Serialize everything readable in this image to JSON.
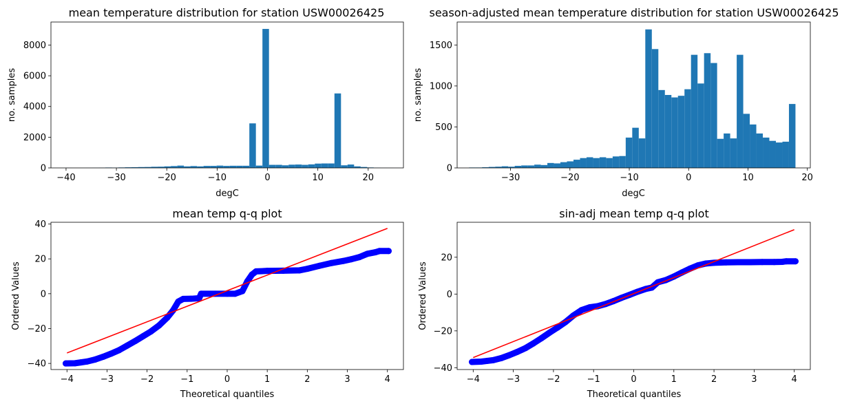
{
  "chart_data": [
    {
      "type": "bar",
      "title": "mean temperature distribution for station USW00026425",
      "xlabel": "degC",
      "ylabel": "no. samples",
      "xlim": [
        -43,
        27
      ],
      "ylim": [
        0,
        9500
      ],
      "xticks": [
        -40,
        -30,
        -20,
        -10,
        0,
        10,
        20
      ],
      "yticks": [
        0,
        2000,
        4000,
        6000,
        8000
      ],
      "color": "#1f77b4",
      "bins": [
        {
          "x0": -40.0,
          "x1": -38.7,
          "value": 5
        },
        {
          "x0": -38.7,
          "x1": -37.4,
          "value": 2
        },
        {
          "x0": -37.4,
          "x1": -36.1,
          "value": 3
        },
        {
          "x0": -36.1,
          "x1": -34.8,
          "value": 4
        },
        {
          "x0": -34.8,
          "x1": -33.5,
          "value": 8
        },
        {
          "x0": -33.5,
          "x1": -32.2,
          "value": 12
        },
        {
          "x0": -32.2,
          "x1": -30.9,
          "value": 25
        },
        {
          "x0": -30.9,
          "x1": -29.6,
          "value": 18
        },
        {
          "x0": -29.6,
          "x1": -28.3,
          "value": 30
        },
        {
          "x0": -28.3,
          "x1": -27.0,
          "value": 40
        },
        {
          "x0": -27.0,
          "x1": -25.7,
          "value": 45
        },
        {
          "x0": -25.7,
          "x1": -24.4,
          "value": 55
        },
        {
          "x0": -24.4,
          "x1": -23.1,
          "value": 60
        },
        {
          "x0": -23.1,
          "x1": -21.8,
          "value": 75
        },
        {
          "x0": -21.8,
          "x1": -20.5,
          "value": 80
        },
        {
          "x0": -20.5,
          "x1": -19.2,
          "value": 100
        },
        {
          "x0": -19.2,
          "x1": -17.9,
          "value": 120
        },
        {
          "x0": -17.9,
          "x1": -16.6,
          "value": 150
        },
        {
          "x0": -16.6,
          "x1": -15.3,
          "value": 100
        },
        {
          "x0": -15.3,
          "x1": -14.0,
          "value": 120
        },
        {
          "x0": -14.0,
          "x1": -12.7,
          "value": 100
        },
        {
          "x0": -12.7,
          "x1": -11.4,
          "value": 130
        },
        {
          "x0": -11.4,
          "x1": -10.1,
          "value": 130
        },
        {
          "x0": -10.1,
          "x1": -8.8,
          "value": 150
        },
        {
          "x0": -8.8,
          "x1": -7.5,
          "value": 130
        },
        {
          "x0": -7.5,
          "x1": -6.2,
          "value": 140
        },
        {
          "x0": -6.2,
          "x1": -4.9,
          "value": 140
        },
        {
          "x0": -4.9,
          "x1": -3.6,
          "value": 140
        },
        {
          "x0": -3.6,
          "x1": -2.3,
          "value": 2900
        },
        {
          "x0": -2.3,
          "x1": -1.0,
          "value": 150
        },
        {
          "x0": -1.0,
          "x1": 0.3,
          "value": 9050
        },
        {
          "x0": 0.3,
          "x1": 1.6,
          "value": 200
        },
        {
          "x0": 1.6,
          "x1": 2.9,
          "value": 200
        },
        {
          "x0": 2.9,
          "x1": 4.2,
          "value": 170
        },
        {
          "x0": 4.2,
          "x1": 5.5,
          "value": 210
        },
        {
          "x0": 5.5,
          "x1": 6.8,
          "value": 220
        },
        {
          "x0": 6.8,
          "x1": 8.1,
          "value": 200
        },
        {
          "x0": 8.1,
          "x1": 9.4,
          "value": 230
        },
        {
          "x0": 9.4,
          "x1": 10.7,
          "value": 280
        },
        {
          "x0": 10.7,
          "x1": 12.0,
          "value": 290
        },
        {
          "x0": 12.0,
          "x1": 13.3,
          "value": 290
        },
        {
          "x0": 13.3,
          "x1": 14.6,
          "value": 4850
        },
        {
          "x0": 14.6,
          "x1": 15.9,
          "value": 170
        },
        {
          "x0": 15.9,
          "x1": 17.2,
          "value": 220
        },
        {
          "x0": 17.2,
          "x1": 18.5,
          "value": 100
        },
        {
          "x0": 18.5,
          "x1": 19.8,
          "value": 60
        },
        {
          "x0": 19.8,
          "x1": 21.1,
          "value": 30
        },
        {
          "x0": 21.1,
          "x1": 22.4,
          "value": 12
        },
        {
          "x0": 22.4,
          "x1": 23.7,
          "value": 5
        },
        {
          "x0": 23.7,
          "x1": 25.0,
          "value": 3
        }
      ]
    },
    {
      "type": "bar",
      "title": "season-adjusted mean temperature distribution for station USW00026425",
      "xlabel": "degC",
      "ylabel": "no. samples",
      "xlim": [
        -39,
        20.5
      ],
      "ylim": [
        0,
        1780
      ],
      "xticks": [
        -30,
        -20,
        -10,
        0,
        10,
        20
      ],
      "yticks": [
        0,
        500,
        1000,
        1500
      ],
      "color": "#1f77b4",
      "bins": [
        {
          "x0": -37.0,
          "x1": -35.9,
          "value": 5
        },
        {
          "x0": -35.9,
          "x1": -34.8,
          "value": 5
        },
        {
          "x0": -34.8,
          "x1": -33.7,
          "value": 8
        },
        {
          "x0": -33.7,
          "x1": -32.6,
          "value": 12
        },
        {
          "x0": -32.6,
          "x1": -31.5,
          "value": 15
        },
        {
          "x0": -31.5,
          "x1": -30.4,
          "value": 20
        },
        {
          "x0": -30.4,
          "x1": -29.3,
          "value": 15
        },
        {
          "x0": -29.3,
          "x1": -28.2,
          "value": 25
        },
        {
          "x0": -28.2,
          "x1": -27.1,
          "value": 30
        },
        {
          "x0": -27.1,
          "x1": -26.0,
          "value": 30
        },
        {
          "x0": -26.0,
          "x1": -24.9,
          "value": 40
        },
        {
          "x0": -24.9,
          "x1": -23.8,
          "value": 35
        },
        {
          "x0": -23.8,
          "x1": -22.7,
          "value": 60
        },
        {
          "x0": -22.7,
          "x1": -21.6,
          "value": 55
        },
        {
          "x0": -21.6,
          "x1": -20.5,
          "value": 70
        },
        {
          "x0": -20.5,
          "x1": -19.4,
          "value": 80
        },
        {
          "x0": -19.4,
          "x1": -18.3,
          "value": 100
        },
        {
          "x0": -18.3,
          "x1": -17.2,
          "value": 120
        },
        {
          "x0": -17.2,
          "x1": -16.1,
          "value": 130
        },
        {
          "x0": -16.1,
          "x1": -15.0,
          "value": 120
        },
        {
          "x0": -15.0,
          "x1": -13.9,
          "value": 130
        },
        {
          "x0": -13.9,
          "x1": -12.8,
          "value": 120
        },
        {
          "x0": -12.8,
          "x1": -11.7,
          "value": 140
        },
        {
          "x0": -11.7,
          "x1": -10.6,
          "value": 145
        },
        {
          "x0": -10.6,
          "x1": -9.5,
          "value": 370
        },
        {
          "x0": -9.5,
          "x1": -8.4,
          "value": 490
        },
        {
          "x0": -8.4,
          "x1": -7.3,
          "value": 360
        },
        {
          "x0": -7.3,
          "x1": -6.2,
          "value": 1690
        },
        {
          "x0": -6.2,
          "x1": -5.1,
          "value": 1450
        },
        {
          "x0": -5.1,
          "x1": -4.0,
          "value": 950
        },
        {
          "x0": -4.0,
          "x1": -2.9,
          "value": 890
        },
        {
          "x0": -2.9,
          "x1": -1.8,
          "value": 860
        },
        {
          "x0": -1.8,
          "x1": -0.7,
          "value": 880
        },
        {
          "x0": -0.7,
          "x1": 0.4,
          "value": 960
        },
        {
          "x0": 0.4,
          "x1": 1.5,
          "value": 1380
        },
        {
          "x0": 1.5,
          "x1": 2.6,
          "value": 1030
        },
        {
          "x0": 2.6,
          "x1": 3.7,
          "value": 1400
        },
        {
          "x0": 3.7,
          "x1": 4.8,
          "value": 1280
        },
        {
          "x0": 4.8,
          "x1": 5.9,
          "value": 355
        },
        {
          "x0": 5.9,
          "x1": 7.0,
          "value": 420
        },
        {
          "x0": 7.0,
          "x1": 8.1,
          "value": 360
        },
        {
          "x0": 8.1,
          "x1": 9.2,
          "value": 1380
        },
        {
          "x0": 9.2,
          "x1": 10.3,
          "value": 660
        },
        {
          "x0": 10.3,
          "x1": 11.4,
          "value": 530
        },
        {
          "x0": 11.4,
          "x1": 12.5,
          "value": 420
        },
        {
          "x0": 12.5,
          "x1": 13.6,
          "value": 370
        },
        {
          "x0": 13.6,
          "x1": 14.7,
          "value": 330
        },
        {
          "x0": 14.7,
          "x1": 15.8,
          "value": 310
        },
        {
          "x0": 15.8,
          "x1": 16.9,
          "value": 320
        },
        {
          "x0": 16.9,
          "x1": 18.0,
          "value": 780
        }
      ]
    },
    {
      "type": "scatter",
      "title": "mean temp q-q plot",
      "xlabel": "Theoretical quantiles",
      "ylabel": "Ordered Values",
      "xlim": [
        -4.4,
        4.4
      ],
      "ylim": [
        -43.5,
        41
      ],
      "xticks": [
        -4,
        -3,
        -2,
        -1,
        0,
        1,
        2,
        3,
        4
      ],
      "yticks": [
        -40,
        -20,
        0,
        20,
        40
      ],
      "marker_color": "#0000ff",
      "line_color": "#ff0000",
      "fit_line": {
        "x": [
          -4.0,
          4.0
        ],
        "y": [
          -34.0,
          37.5
        ]
      },
      "points": [
        {
          "x": -4.03,
          "y": -40.0
        },
        {
          "x": -3.8,
          "y": -39.9
        },
        {
          "x": -3.65,
          "y": -39.4
        },
        {
          "x": -3.5,
          "y": -38.9
        },
        {
          "x": -3.3,
          "y": -37.8
        },
        {
          "x": -3.1,
          "y": -36.2
        },
        {
          "x": -2.9,
          "y": -34.4
        },
        {
          "x": -2.7,
          "y": -32.4
        },
        {
          "x": -2.5,
          "y": -29.8
        },
        {
          "x": -2.3,
          "y": -27.2
        },
        {
          "x": -2.1,
          "y": -24.4
        },
        {
          "x": -1.9,
          "y": -21.6
        },
        {
          "x": -1.7,
          "y": -18.2
        },
        {
          "x": -1.5,
          "y": -13.8
        },
        {
          "x": -1.35,
          "y": -9.5
        },
        {
          "x": -1.22,
          "y": -4.5
        },
        {
          "x": -1.1,
          "y": -3.0
        },
        {
          "x": -0.9,
          "y": -2.9
        },
        {
          "x": -0.7,
          "y": -2.6
        },
        {
          "x": -0.65,
          "y": 0.0
        },
        {
          "x": -0.3,
          "y": 0.0
        },
        {
          "x": 0.0,
          "y": 0.0
        },
        {
          "x": 0.2,
          "y": 0.0
        },
        {
          "x": 0.38,
          "y": 1.5
        },
        {
          "x": 0.5,
          "y": 7.0
        },
        {
          "x": 0.62,
          "y": 11.0
        },
        {
          "x": 0.72,
          "y": 12.8
        },
        {
          "x": 1.0,
          "y": 13.1
        },
        {
          "x": 1.4,
          "y": 13.2
        },
        {
          "x": 1.8,
          "y": 13.4
        },
        {
          "x": 2.0,
          "y": 14.3
        },
        {
          "x": 2.3,
          "y": 16.0
        },
        {
          "x": 2.6,
          "y": 17.6
        },
        {
          "x": 2.9,
          "y": 18.8
        },
        {
          "x": 3.1,
          "y": 19.8
        },
        {
          "x": 3.3,
          "y": 21.0
        },
        {
          "x": 3.5,
          "y": 22.9
        },
        {
          "x": 3.7,
          "y": 23.8
        },
        {
          "x": 3.8,
          "y": 24.5
        },
        {
          "x": 4.03,
          "y": 24.5
        }
      ]
    },
    {
      "type": "scatter",
      "title": "sin-adj mean temp q-q plot",
      "xlabel": "Theoretical quantiles",
      "ylabel": "Ordered Values",
      "xlim": [
        -4.4,
        4.4
      ],
      "ylim": [
        -41,
        39
      ],
      "xticks": [
        -4,
        -3,
        -2,
        -1,
        0,
        1,
        2,
        3,
        4
      ],
      "yticks": [
        -40,
        -20,
        0,
        20
      ],
      "marker_color": "#0000ff",
      "line_color": "#ff0000",
      "fit_line": {
        "x": [
          -4.0,
          4.0
        ],
        "y": [
          -34.5,
          35.0
        ]
      },
      "points": [
        {
          "x": -4.03,
          "y": -36.9
        },
        {
          "x": -3.8,
          "y": -36.7
        },
        {
          "x": -3.65,
          "y": -36.3
        },
        {
          "x": -3.5,
          "y": -35.9
        },
        {
          "x": -3.3,
          "y": -34.8
        },
        {
          "x": -3.1,
          "y": -33.2
        },
        {
          "x": -2.9,
          "y": -31.4
        },
        {
          "x": -2.7,
          "y": -29.4
        },
        {
          "x": -2.5,
          "y": -26.8
        },
        {
          "x": -2.3,
          "y": -24.0
        },
        {
          "x": -2.1,
          "y": -21.0
        },
        {
          "x": -1.9,
          "y": -18.2
        },
        {
          "x": -1.7,
          "y": -15.2
        },
        {
          "x": -1.5,
          "y": -11.6
        },
        {
          "x": -1.3,
          "y": -8.7
        },
        {
          "x": -1.1,
          "y": -7.2
        },
        {
          "x": -0.9,
          "y": -6.6
        },
        {
          "x": -0.7,
          "y": -5.4
        },
        {
          "x": -0.5,
          "y": -3.8
        },
        {
          "x": -0.3,
          "y": -2.0
        },
        {
          "x": -0.1,
          "y": -0.4
        },
        {
          "x": 0.1,
          "y": 1.3
        },
        {
          "x": 0.3,
          "y": 2.8
        },
        {
          "x": 0.45,
          "y": 3.5
        },
        {
          "x": 0.6,
          "y": 6.4
        },
        {
          "x": 0.8,
          "y": 7.6
        },
        {
          "x": 1.0,
          "y": 9.5
        },
        {
          "x": 1.2,
          "y": 11.7
        },
        {
          "x": 1.4,
          "y": 13.8
        },
        {
          "x": 1.6,
          "y": 15.6
        },
        {
          "x": 1.8,
          "y": 16.6
        },
        {
          "x": 2.0,
          "y": 17.0
        },
        {
          "x": 2.3,
          "y": 17.2
        },
        {
          "x": 2.6,
          "y": 17.3
        },
        {
          "x": 2.9,
          "y": 17.3
        },
        {
          "x": 3.2,
          "y": 17.4
        },
        {
          "x": 3.5,
          "y": 17.4
        },
        {
          "x": 3.7,
          "y": 17.5
        },
        {
          "x": 3.8,
          "y": 17.8
        },
        {
          "x": 4.03,
          "y": 17.8
        }
      ]
    }
  ]
}
